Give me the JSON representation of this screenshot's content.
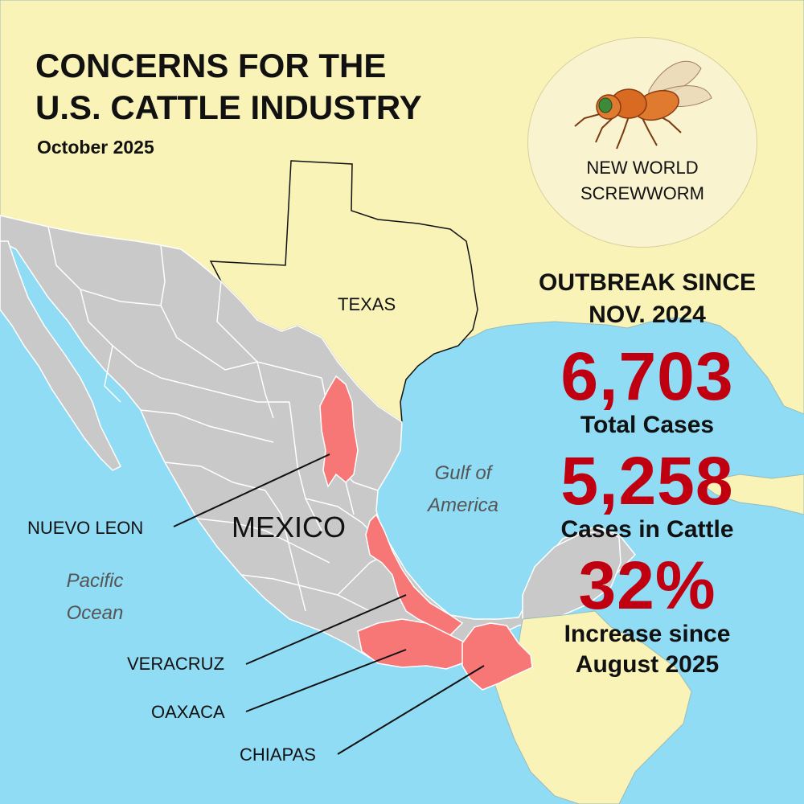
{
  "heading": {
    "line1": "CONCERNS FOR THE",
    "line2": "U.S. CATTLE INDUSTRY",
    "date": "October 2025"
  },
  "badge": {
    "icon": "screwworm-fly-icon",
    "line1": "NEW WORLD",
    "line2": "SCREWWORM"
  },
  "stats": {
    "heading_line1": "OUTBREAK SINCE",
    "heading_line2": "NOV. 2024",
    "total_cases": "6,703",
    "total_cases_label": "Total Cases",
    "cattle_cases": "5,258",
    "cattle_cases_label": "Cases in Cattle",
    "increase": "32%",
    "increase_label_line1": "Increase since",
    "increase_label_line2": "August 2025"
  },
  "map": {
    "country_label": "MEXICO",
    "us_state_label": "TEXAS",
    "gulf_line1": "Gulf of",
    "gulf_line2": "America",
    "pacific_line1": "Pacific",
    "pacific_line2": "Ocean",
    "highlighted_states": [
      "NUEVO LEON",
      "VERACRUZ",
      "OAXACA",
      "CHIAPAS"
    ],
    "colors": {
      "water": "#8fdcf4",
      "land_us": "#faf3b7",
      "mexico": "#c9c9c9",
      "highlight": "#f77676",
      "stat_red": "#c00010"
    }
  }
}
